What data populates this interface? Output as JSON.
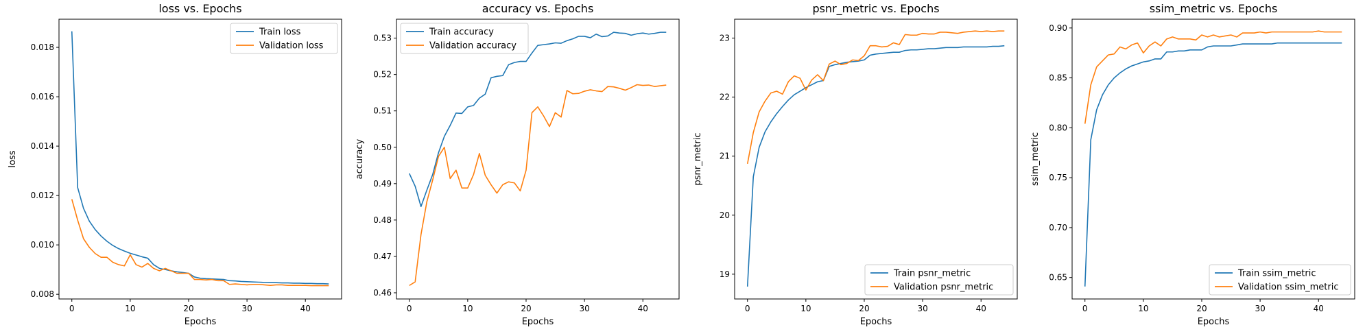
{
  "figure": {
    "background": "#ffffff"
  },
  "chart_data": [
    {
      "type": "line",
      "title": "loss vs. Epochs",
      "xlabel": "Epochs",
      "ylabel": "loss",
      "xlim": [
        -2.2,
        46.2
      ],
      "ylim": [
        0.00781,
        0.01914
      ],
      "xticks": [
        0,
        10,
        20,
        30,
        40
      ],
      "yticks": [
        0.008,
        0.01,
        0.012,
        0.014,
        0.016,
        0.018
      ],
      "ytick_labels": [
        "0.008",
        "0.010",
        "0.012",
        "0.014",
        "0.016",
        "0.018"
      ],
      "legend_position": "top-right",
      "grid": false,
      "series": [
        {
          "name": "Train loss",
          "color": "#1f77b4",
          "values": [
            0.01865,
            0.01232,
            0.01148,
            0.01096,
            0.01062,
            0.01036,
            0.01015,
            0.00998,
            0.00985,
            0.00975,
            0.00966,
            0.00959,
            0.00952,
            0.00946,
            0.0092,
            0.00905,
            0.009,
            0.00895,
            0.00891,
            0.00888,
            0.00885,
            0.0087,
            0.00865,
            0.00863,
            0.00862,
            0.00861,
            0.0086,
            0.00855,
            0.00854,
            0.00852,
            0.00851,
            0.0085,
            0.00849,
            0.00848,
            0.00847,
            0.00847,
            0.00846,
            0.00846,
            0.00845,
            0.00845,
            0.00844,
            0.00844,
            0.00843,
            0.00843,
            0.00842
          ]
        },
        {
          "name": "Validation loss",
          "color": "#ff7f0e",
          "values": [
            0.01185,
            0.011,
            0.01025,
            0.0099,
            0.00965,
            0.0095,
            0.0095,
            0.0093,
            0.0092,
            0.00915,
            0.0096,
            0.0092,
            0.0091,
            0.00925,
            0.00905,
            0.00895,
            0.00905,
            0.00895,
            0.00885,
            0.00885,
            0.00885,
            0.0086,
            0.0086,
            0.00858,
            0.0086,
            0.00855,
            0.00855,
            0.0084,
            0.00842,
            0.0084,
            0.00838,
            0.0084,
            0.0084,
            0.00838,
            0.00836,
            0.00838,
            0.00838,
            0.00836,
            0.00836,
            0.00836,
            0.00836,
            0.00835,
            0.00835,
            0.00835,
            0.00835
          ]
        }
      ]
    },
    {
      "type": "line",
      "title": "accuracy vs. Epochs",
      "xlabel": "Epochs",
      "ylabel": "accuracy",
      "xlim": [
        -2.2,
        46.2
      ],
      "ylim": [
        0.4583,
        0.5352
      ],
      "xticks": [
        0,
        10,
        20,
        30,
        40
      ],
      "yticks": [
        0.46,
        0.47,
        0.48,
        0.49,
        0.5,
        0.51,
        0.52,
        0.53
      ],
      "ytick_labels": [
        "0.46",
        "0.47",
        "0.48",
        "0.49",
        "0.50",
        "0.51",
        "0.52",
        "0.53"
      ],
      "legend_position": "top-left",
      "grid": false,
      "series": [
        {
          "name": "Train accuracy",
          "color": "#1f77b4",
          "values": [
            0.4928,
            0.4893,
            0.4837,
            0.4882,
            0.4925,
            0.4985,
            0.503,
            0.506,
            0.5094,
            0.5093,
            0.5111,
            0.5115,
            0.5135,
            0.5146,
            0.5191,
            0.5195,
            0.5197,
            0.5227,
            0.5233,
            0.5236,
            0.5236,
            0.5259,
            0.528,
            0.5282,
            0.5284,
            0.5287,
            0.5286,
            0.5293,
            0.5298,
            0.5305,
            0.5305,
            0.5301,
            0.5311,
            0.5304,
            0.5306,
            0.5316,
            0.5314,
            0.5313,
            0.5308,
            0.5312,
            0.5314,
            0.5311,
            0.5313,
            0.5316,
            0.5316
          ]
        },
        {
          "name": "Validation accuracy",
          "color": "#ff7f0e",
          "values": [
            0.462,
            0.463,
            0.476,
            0.485,
            0.491,
            0.4975,
            0.5,
            0.4914,
            0.4937,
            0.4888,
            0.4888,
            0.4925,
            0.4983,
            0.4923,
            0.4897,
            0.4874,
            0.4897,
            0.4905,
            0.4902,
            0.488,
            0.4937,
            0.5095,
            0.5111,
            0.5086,
            0.5057,
            0.5095,
            0.5083,
            0.5156,
            0.5147,
            0.5148,
            0.5154,
            0.5158,
            0.5155,
            0.5153,
            0.5167,
            0.5166,
            0.5162,
            0.5157,
            0.5164,
            0.5172,
            0.517,
            0.5171,
            0.5167,
            0.5169,
            0.5171
          ]
        }
      ]
    },
    {
      "type": "line",
      "title": "psnr_metric vs. Epochs",
      "xlabel": "Epochs",
      "ylabel": "psnr_metric",
      "xlim": [
        -2.2,
        46.2
      ],
      "ylim": [
        18.58,
        23.32
      ],
      "xticks": [
        0,
        10,
        20,
        30,
        40
      ],
      "yticks": [
        19,
        20,
        21,
        22,
        23
      ],
      "ytick_labels": [
        "19",
        "20",
        "21",
        "22",
        "23"
      ],
      "legend_position": "bottom-right",
      "grid": false,
      "series": [
        {
          "name": "Train psnr_metric",
          "color": "#1f77b4",
          "values": [
            18.79,
            20.65,
            21.15,
            21.41,
            21.58,
            21.72,
            21.84,
            21.95,
            22.04,
            22.1,
            22.16,
            22.21,
            22.26,
            22.28,
            22.52,
            22.55,
            22.57,
            22.59,
            22.6,
            22.61,
            22.63,
            22.71,
            22.73,
            22.74,
            22.75,
            22.76,
            22.76,
            22.79,
            22.8,
            22.8,
            22.81,
            22.82,
            22.82,
            22.83,
            22.84,
            22.84,
            22.84,
            22.85,
            22.85,
            22.85,
            22.85,
            22.85,
            22.86,
            22.86,
            22.87
          ]
        },
        {
          "name": "Validation psnr_metric",
          "color": "#ff7f0e",
          "values": [
            20.87,
            21.4,
            21.75,
            21.93,
            22.07,
            22.1,
            22.05,
            22.26,
            22.36,
            22.32,
            22.12,
            22.29,
            22.38,
            22.28,
            22.56,
            22.61,
            22.55,
            22.57,
            22.63,
            22.62,
            22.7,
            22.87,
            22.87,
            22.85,
            22.86,
            22.92,
            22.89,
            23.06,
            23.05,
            23.05,
            23.08,
            23.07,
            23.07,
            23.1,
            23.1,
            23.09,
            23.08,
            23.1,
            23.11,
            23.12,
            23.11,
            23.12,
            23.11,
            23.12,
            23.12
          ]
        }
      ]
    },
    {
      "type": "line",
      "title": "ssim_metric vs. Epochs",
      "xlabel": "Epochs",
      "ylabel": "ssim_metric",
      "xlim": [
        -2.2,
        46.2
      ],
      "ylim": [
        0.6285,
        0.9088
      ],
      "xticks": [
        0,
        10,
        20,
        30,
        40
      ],
      "yticks": [
        0.65,
        0.7,
        0.75,
        0.8,
        0.85,
        0.9
      ],
      "ytick_labels": [
        "0.65",
        "0.70",
        "0.75",
        "0.80",
        "0.85",
        "0.90"
      ],
      "legend_position": "bottom-right",
      "grid": false,
      "series": [
        {
          "name": "Train ssim_metric",
          "color": "#1f77b4",
          "values": [
            0.641,
            0.788,
            0.818,
            0.833,
            0.843,
            0.85,
            0.855,
            0.859,
            0.862,
            0.864,
            0.866,
            0.867,
            0.869,
            0.869,
            0.876,
            0.876,
            0.877,
            0.877,
            0.878,
            0.878,
            0.878,
            0.881,
            0.882,
            0.882,
            0.882,
            0.882,
            0.883,
            0.884,
            0.884,
            0.884,
            0.884,
            0.884,
            0.884,
            0.885,
            0.885,
            0.885,
            0.885,
            0.885,
            0.885,
            0.885,
            0.885,
            0.885,
            0.885,
            0.885,
            0.885
          ]
        },
        {
          "name": "Validation ssim_metric",
          "color": "#ff7f0e",
          "values": [
            0.804,
            0.843,
            0.861,
            0.867,
            0.873,
            0.874,
            0.881,
            0.879,
            0.883,
            0.885,
            0.875,
            0.882,
            0.886,
            0.882,
            0.889,
            0.891,
            0.889,
            0.889,
            0.889,
            0.888,
            0.893,
            0.891,
            0.893,
            0.891,
            0.892,
            0.893,
            0.891,
            0.895,
            0.895,
            0.895,
            0.896,
            0.895,
            0.896,
            0.896,
            0.896,
            0.896,
            0.896,
            0.896,
            0.896,
            0.896,
            0.897,
            0.896,
            0.896,
            0.896,
            0.896
          ]
        }
      ]
    }
  ]
}
